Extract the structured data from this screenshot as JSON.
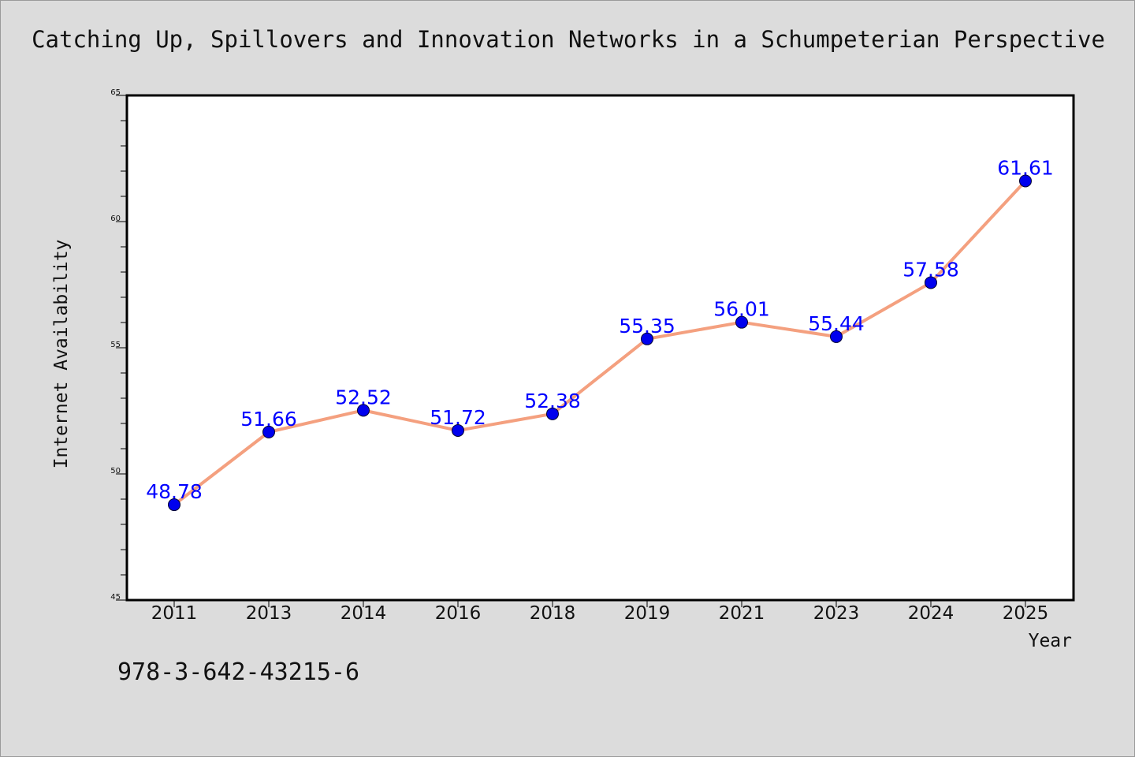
{
  "chart_data": {
    "type": "line",
    "title": "Catching Up, Spillovers and Innovation Networks in a Schumpeterian Perspective",
    "xlabel": "Year",
    "ylabel": "Internet Availability",
    "categories": [
      "2011",
      "2013",
      "2014",
      "2016",
      "2018",
      "2019",
      "2021",
      "2023",
      "2024",
      "2025"
    ],
    "series": [
      {
        "values": [
          48.78,
          51.66,
          52.52,
          51.72,
          52.38,
          55.35,
          56.01,
          55.44,
          57.58,
          61.61
        ],
        "labels": [
          "48.78",
          "51.66",
          "52.52",
          "51.72",
          "52.38",
          "55.35",
          "56.01",
          "55.44",
          "57.58",
          "61.61"
        ],
        "line_color": "#f4a07f",
        "marker_color": "#0000ee"
      }
    ],
    "ylim": [
      45,
      65
    ],
    "yticks": [
      "45",
      "50",
      "55",
      "60",
      "65"
    ],
    "grid": false,
    "legend": "none"
  },
  "footer": {
    "isbn": "978-3-642-43215-6"
  }
}
